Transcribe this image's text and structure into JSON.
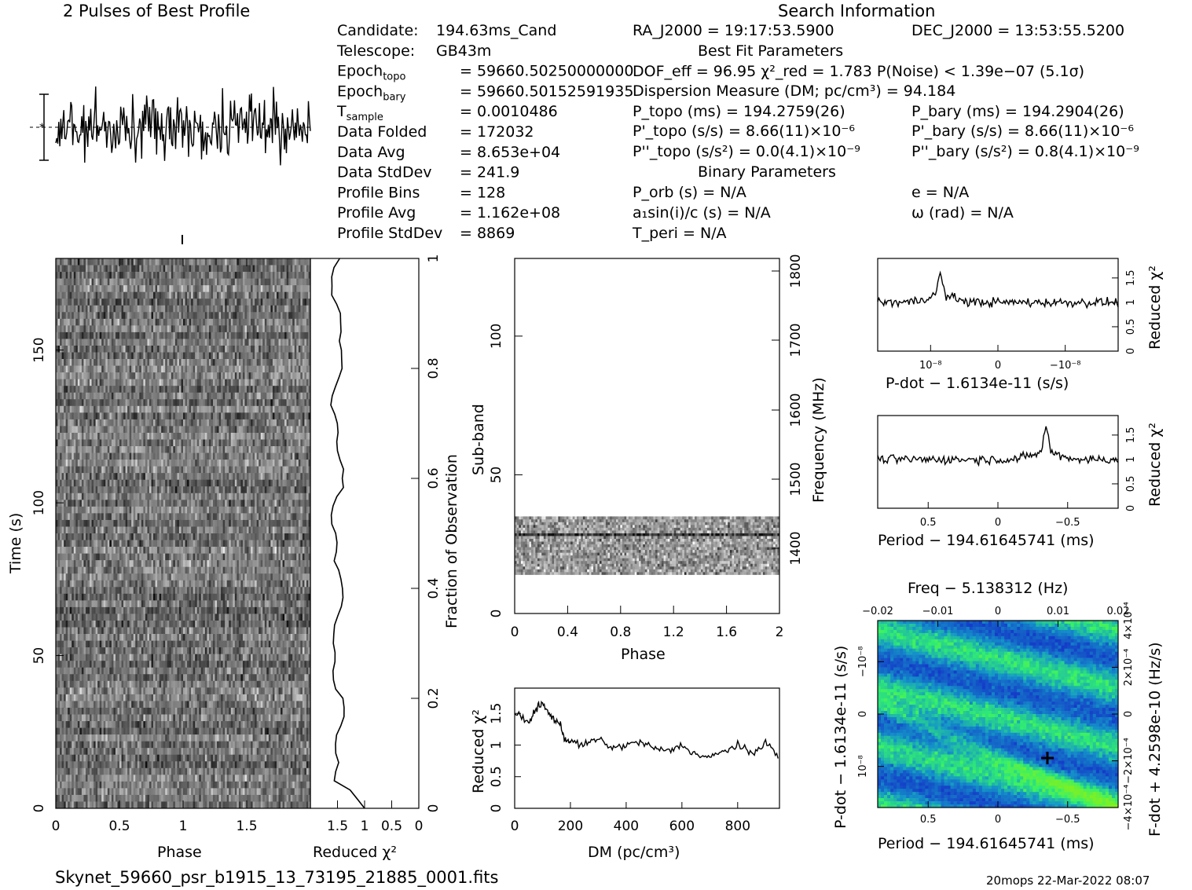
{
  "header": {
    "profile_title": "2 Pulses of Best Profile",
    "search_title": "Search Information",
    "filename": "Skynet_59660_psr_b1915_13_73195_21885_0001.fits",
    "stamp": "20mops 22-Mar-2022 08:07"
  },
  "info_left": [
    {
      "k": "Candidate:",
      "sub": "",
      "v": "194.63ms_Cand"
    },
    {
      "k": "Telescope:",
      "sub": "",
      "v": "GB43m"
    },
    {
      "k": "Epoch",
      "sub": "topo",
      "v": "= 59660.50250000000"
    },
    {
      "k": "Epoch",
      "sub": "bary",
      "v": "= 59660.50152591935"
    },
    {
      "k": "T",
      "sub": "sample",
      "v": "= 0.0010486"
    },
    {
      "k": "Data Folded",
      "sub": "",
      "v": "= 172032"
    },
    {
      "k": "Data Avg",
      "sub": "",
      "v": "= 8.653e+04"
    },
    {
      "k": "Data StdDev",
      "sub": "",
      "v": "= 241.9"
    },
    {
      "k": "Profile Bins",
      "sub": "",
      "v": "= 128"
    },
    {
      "k": "Profile Avg",
      "sub": "",
      "v": "= 1.162e+08"
    },
    {
      "k": "Profile StdDev",
      "sub": "",
      "v": "= 8869"
    }
  ],
  "info_mid": {
    "ra": "RA_J2000 = 19:17:53.5900",
    "dec": "DEC_J2000 = 13:53:55.5200",
    "best_fit": "Best Fit Parameters",
    "fit_line": "DOF_eff = 96.95  χ²_red = 1.783  P(Noise) < 1.39e−07  (5.1σ)",
    "dm_line": "Dispersion Measure (DM; pc/cm³) = 94.184",
    "ptopo": "P_topo (ms) =  194.2759(26)",
    "pbary": "P_bary (ms) =  194.2904(26)",
    "pdtopo": "P'_topo (s/s) =  8.66(11)×10⁻⁶",
    "pdbary": "P'_bary (s/s) =  8.66(11)×10⁻⁶",
    "pddtopo": "P''_topo (s/s²) = 0.0(4.1)×10⁻⁹",
    "pddbary": "P''_bary (s/s²) =  0.8(4.1)×10⁻⁹",
    "binary": "Binary Parameters",
    "porb": "P_orb (s) = N/A",
    "e": "e = N/A",
    "a1": "a₁sin(i)/c (s) = N/A",
    "omega": "ω (rad) = N/A",
    "tperi": "T_peri = N/A"
  },
  "chart_data": [
    {
      "type": "line",
      "title": "2 Pulses of Best Profile",
      "x": "phase 0–2 (two pulses, 128 bins each)",
      "ylabel": "",
      "note": "noisy profile, no clear pulse"
    },
    {
      "type": "heatmap",
      "xlabel": "Phase",
      "ylabel": "Time (s)",
      "xlim": [
        0,
        2
      ],
      "ylim": [
        0,
        180
      ],
      "xticks": [
        "0",
        "0.5",
        "1",
        "1.5"
      ],
      "yticks": [
        "0",
        "50",
        "100",
        "150"
      ]
    },
    {
      "type": "line",
      "xlabel": "Reduced χ²",
      "xticks": [
        "1.5",
        "1",
        "0.5",
        "0"
      ],
      "right_axis": "Fraction of Observation",
      "right_ticks": [
        "0",
        "0.2",
        "0.4",
        "0.6",
        "0.8",
        "1"
      ]
    },
    {
      "type": "heatmap",
      "xlabel": "Phase",
      "ylabel": "Sub-band",
      "xlim": [
        0,
        2
      ],
      "ylim": [
        0,
        128
      ],
      "xticks": [
        "0",
        "0.4",
        "0.8",
        "1.2",
        "1.6",
        "2"
      ],
      "yticks": [
        "0",
        "50",
        "100"
      ],
      "right_axis": "Frequency (MHz)",
      "right_ticks": [
        "1400",
        "1500",
        "1600",
        "1700",
        "1800"
      ],
      "note": "data only in sub-bands ~14 to ~35"
    },
    {
      "type": "line",
      "xlabel": "DM (pc/cm³)",
      "ylabel": "Reduced χ²",
      "xlim": [
        0,
        950
      ],
      "ylim": [
        0,
        1.9
      ],
      "xticks": [
        "0",
        "200",
        "400",
        "600",
        "800"
      ],
      "yticks": [
        "0",
        "0.5",
        "1",
        "1.5"
      ],
      "x": [
        0,
        50,
        80,
        100,
        130,
        160,
        180,
        200,
        250,
        300,
        350,
        400,
        450,
        500,
        550,
        600,
        650,
        700,
        750,
        800,
        850,
        900,
        950
      ],
      "y": [
        1.5,
        1.35,
        1.6,
        1.65,
        1.45,
        1.35,
        1.1,
        1.05,
        1.0,
        1.1,
        0.95,
        1.0,
        1.05,
        0.95,
        0.9,
        1.0,
        0.85,
        0.8,
        0.9,
        1.0,
        0.85,
        1.05,
        0.8
      ]
    },
    {
      "type": "line",
      "xlabel": "P-dot − 1.6134e-11 (s/s)",
      "ylabel": "Reduced χ²",
      "ylim": [
        0,
        1.9
      ],
      "xticks": [
        "10⁻⁸",
        "0",
        "−10⁻⁸"
      ],
      "yticks": [
        "0",
        "0.5",
        "1",
        "1.5"
      ],
      "note": "peak ~1.6 near 10⁻⁸, baseline ~1"
    },
    {
      "type": "line",
      "xlabel": "Period − 194.61645741 (ms)",
      "ylabel": "Reduced χ²",
      "ylim": [
        0,
        1.9
      ],
      "xticks": [
        "0.5",
        "0",
        "−0.5"
      ],
      "yticks": [
        "0",
        "0.5",
        "1",
        "1.5"
      ],
      "note": "peak ~1.7 near −0.35"
    },
    {
      "type": "heatmap",
      "title": "Freq − 5.138312 (Hz)",
      "xlabel": "Period − 194.61645741 (ms)",
      "ylabel": "P-dot − 1.6134e-11 (s/s)",
      "right_axis": "F-dot + 4.2598e-10 (Hz/s)",
      "xticks": [
        "0.5",
        "0",
        "−0.5"
      ],
      "top_ticks": [
        "−0.02",
        "−0.01",
        "0",
        "0.01",
        "0.02"
      ],
      "yticks": [
        "10⁻⁸",
        "0",
        "−10⁻⁸"
      ],
      "right_ticks": [
        "−4×10⁻⁴",
        "−2×10⁻⁴",
        "0",
        "2×10⁻⁴",
        "4×10⁻⁴"
      ],
      "marker": "best-fit cross near period −0.35"
    }
  ],
  "axis_titles": {
    "time": "Time (s)",
    "phase": "Phase",
    "redchi": "Reduced χ²",
    "frac": "Fraction of Observation",
    "subband": "Sub-band",
    "freq": "Frequency (MHz)",
    "dm": "DM (pc/cm³)",
    "pdot": "P-dot − 1.6134e-11 (s/s)",
    "period": "Period − 194.61645741 (ms)",
    "freqtop": "Freq − 5.138312 (Hz)",
    "fdot": "F-dot + 4.2598e-10 (Hz/s)"
  }
}
